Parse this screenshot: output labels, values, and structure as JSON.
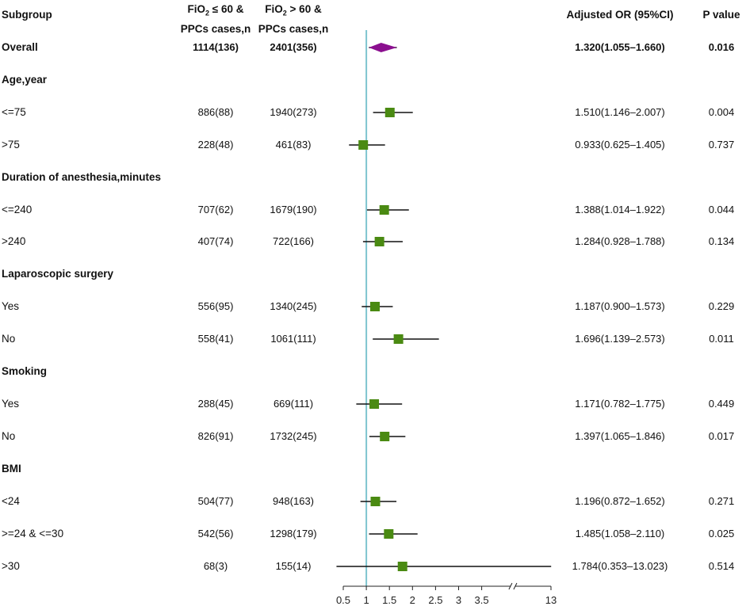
{
  "headers": {
    "subgroup": "Subgroup",
    "col1_line1_pre": "FiO",
    "col1_line1_sub": "2",
    "col1_line1_post": " ≤ 60 &",
    "col1_line2": "PPCs cases,n",
    "col2_line1_pre": "FiO",
    "col2_line1_sub": "2",
    "col2_line1_post": " > 60 &",
    "col2_line2": "PPCs cases,n",
    "or": "Adjusted OR (95%CI)",
    "p": "P value"
  },
  "rows": [
    {
      "type": "overall",
      "label": "Overall",
      "n1": "1114(136)",
      "n2": "2401(356)",
      "or_text": "1.320(1.055–1.660)",
      "p": "0.016"
    },
    {
      "type": "section",
      "label": "Age,year"
    },
    {
      "type": "data",
      "label": "<=75",
      "n1": "886(88)",
      "n2": "1940(273)",
      "or_text": "1.510(1.146–2.007)",
      "p": "0.004"
    },
    {
      "type": "data",
      "label": ">75",
      "n1": "228(48)",
      "n2": "461(83)",
      "or_text": "0.933(0.625–1.405)",
      "p": "0.737"
    },
    {
      "type": "section",
      "label": "Duration of anesthesia,minutes"
    },
    {
      "type": "data",
      "label": "<=240",
      "n1": "707(62)",
      "n2": "1679(190)",
      "or_text": "1.388(1.014–1.922)",
      "p": "0.044"
    },
    {
      "type": "data",
      "label": ">240",
      "n1": "407(74)",
      "n2": "722(166)",
      "or_text": "1.284(0.928–1.788)",
      "p": "0.134"
    },
    {
      "type": "section",
      "label": "Laparoscopic surgery"
    },
    {
      "type": "data",
      "label": "Yes",
      "n1": "556(95)",
      "n2": "1340(245)",
      "or_text": "1.187(0.900–1.573)",
      "p": "0.229"
    },
    {
      "type": "data",
      "label": "No",
      "n1": "558(41)",
      "n2": "1061(111)",
      "or_text": "1.696(1.139–2.573)",
      "p": "0.011"
    },
    {
      "type": "section",
      "label": "Smoking"
    },
    {
      "type": "data",
      "label": "Yes",
      "n1": "288(45)",
      "n2": "669(111)",
      "or_text": "1.171(0.782–1.775)",
      "p": "0.449"
    },
    {
      "type": "data",
      "label": "No",
      "n1": "826(91)",
      "n2": "1732(245)",
      "or_text": "1.397(1.065–1.846)",
      "p": "0.017"
    },
    {
      "type": "section",
      "label": "BMI"
    },
    {
      "type": "data",
      "label": "<24",
      "n1": "504(77)",
      "n2": "948(163)",
      "or_text": "1.196(0.872–1.652)",
      "p": "0.271"
    },
    {
      "type": "data",
      "label": ">=24 & <=30",
      "n1": "542(56)",
      "n2": "1298(179)",
      "or_text": "1.485(1.058–2.110)",
      "p": "0.025"
    },
    {
      "type": "data",
      "label": ">30",
      "n1": "68(3)",
      "n2": "155(14)",
      "or_text": "1.784(0.353–13.023)",
      "p": "0.514"
    }
  ],
  "chart_data": {
    "type": "forest",
    "reference_value": 1,
    "x_ticks": [
      0.5,
      1,
      1.5,
      2,
      2.5,
      3,
      3.5,
      13
    ],
    "x_tick_labels": [
      "0.5",
      "1",
      "1.5",
      "2",
      "2.5",
      "3",
      "3.5",
      "13"
    ],
    "axis_break_between": [
      3.5,
      13
    ],
    "series": [
      {
        "label": "Overall",
        "or": 1.32,
        "lo": 1.055,
        "hi": 1.66,
        "marker": "diamond"
      },
      {
        "label": "<=75",
        "or": 1.51,
        "lo": 1.146,
        "hi": 2.007,
        "marker": "square"
      },
      {
        "label": ">75",
        "or": 0.933,
        "lo": 0.625,
        "hi": 1.405,
        "marker": "square"
      },
      {
        "label": "<=240",
        "or": 1.388,
        "lo": 1.014,
        "hi": 1.922,
        "marker": "square"
      },
      {
        "label": ">240",
        "or": 1.284,
        "lo": 0.928,
        "hi": 1.788,
        "marker": "square"
      },
      {
        "label": "Yes",
        "or": 1.187,
        "lo": 0.9,
        "hi": 1.573,
        "marker": "square"
      },
      {
        "label": "No",
        "or": 1.696,
        "lo": 1.139,
        "hi": 2.573,
        "marker": "square"
      },
      {
        "label": "Yes",
        "or": 1.171,
        "lo": 0.782,
        "hi": 1.775,
        "marker": "square"
      },
      {
        "label": "No",
        "or": 1.397,
        "lo": 1.065,
        "hi": 1.846,
        "marker": "square"
      },
      {
        "label": "<24",
        "or": 1.196,
        "lo": 0.872,
        "hi": 1.652,
        "marker": "square"
      },
      {
        "label": ">=24 & <=30",
        "or": 1.485,
        "lo": 1.058,
        "hi": 2.11,
        "marker": "square"
      },
      {
        "label": ">30",
        "or": 1.784,
        "lo": 0.353,
        "hi": 13.023,
        "marker": "square"
      }
    ],
    "colors": {
      "square": "#4a8a12",
      "diamond": "#8b0f8f",
      "reference_line": "#7ec4cf",
      "ci_line": "#111111"
    }
  }
}
